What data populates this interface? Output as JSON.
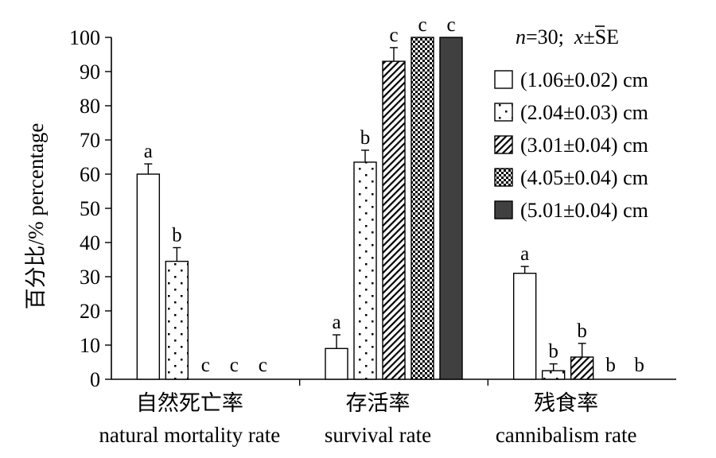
{
  "chart_data": {
    "type": "bar",
    "title": "",
    "ylabel": "百分比/% percentage",
    "ylim": [
      0,
      100
    ],
    "yticks": [
      0,
      10,
      20,
      30,
      40,
      50,
      60,
      70,
      80,
      90,
      100
    ],
    "grid": false,
    "legend_position": "top-right",
    "annotation": {
      "n_label": "n",
      "n_rest": "=30;  ",
      "mean_symbol": "x",
      "se_text": "±SE"
    },
    "categories": [
      {
        "zh": "自然死亡率",
        "en": "natural mortality rate"
      },
      {
        "zh": "存活率",
        "en": "survival rate"
      },
      {
        "zh": "残食率",
        "en": "cannibalism rate"
      }
    ],
    "series": [
      {
        "name": "(1.06±0.02) cm",
        "pattern": "open",
        "values": [
          60,
          9,
          31
        ],
        "errors": [
          3,
          4,
          2
        ],
        "letters": [
          "a",
          "a",
          "a"
        ]
      },
      {
        "name": "(2.04±0.03) cm",
        "pattern": "dots",
        "values": [
          34.5,
          63.5,
          2.5
        ],
        "errors": [
          4,
          3.5,
          2
        ],
        "letters": [
          "b",
          "b",
          "b"
        ]
      },
      {
        "name": "(3.01±0.04) cm",
        "pattern": "diagonal",
        "values": [
          0,
          93,
          6.5
        ],
        "errors": [
          0,
          4,
          4
        ],
        "letters": [
          "c",
          "c",
          "b"
        ]
      },
      {
        "name": "(4.05±0.04) cm",
        "pattern": "checker",
        "values": [
          0,
          100,
          0
        ],
        "errors": [
          0,
          0,
          0
        ],
        "letters": [
          "c",
          "c",
          "b"
        ]
      },
      {
        "name": "(5.01±0.04) cm",
        "pattern": "solid",
        "values": [
          0,
          100,
          0
        ],
        "errors": [
          0,
          0,
          0
        ],
        "letters": [
          "c",
          "c",
          "b"
        ]
      }
    ],
    "colors": {
      "axis": "#000000",
      "bar_fill": "#ffffff",
      "solid_fill": "#404040"
    }
  }
}
